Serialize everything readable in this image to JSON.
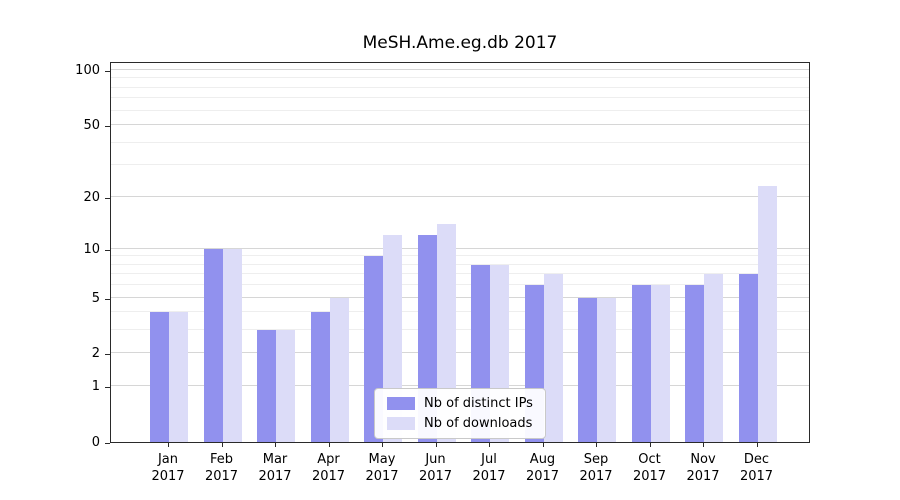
{
  "chart_data": {
    "type": "bar",
    "title": "MeSH.Ame.eg.db 2017",
    "year": "2017",
    "categories": [
      "Jan",
      "Feb",
      "Mar",
      "Apr",
      "May",
      "Jun",
      "Jul",
      "Aug",
      "Sep",
      "Oct",
      "Nov",
      "Dec"
    ],
    "series": [
      {
        "name": "Nb of distinct IPs",
        "color": "#9191ee",
        "values": [
          4,
          10,
          3,
          4,
          9,
          12,
          8,
          6,
          5,
          6,
          6,
          7
        ]
      },
      {
        "name": "Nb of downloads",
        "color": "#dcdcf8",
        "values": [
          4,
          10,
          3,
          5,
          12,
          14,
          8,
          7,
          5,
          6,
          7,
          23
        ]
      }
    ],
    "yscale": "log1p",
    "yticks": [
      0,
      1,
      2,
      5,
      10,
      20,
      50,
      100
    ],
    "minor_yticks": [
      3,
      4,
      6,
      7,
      8,
      9,
      30,
      40,
      60,
      70,
      80,
      90
    ],
    "ylim": [
      0,
      113
    ],
    "grid": "horizontal",
    "legend_position": "inside-bottom-center"
  }
}
